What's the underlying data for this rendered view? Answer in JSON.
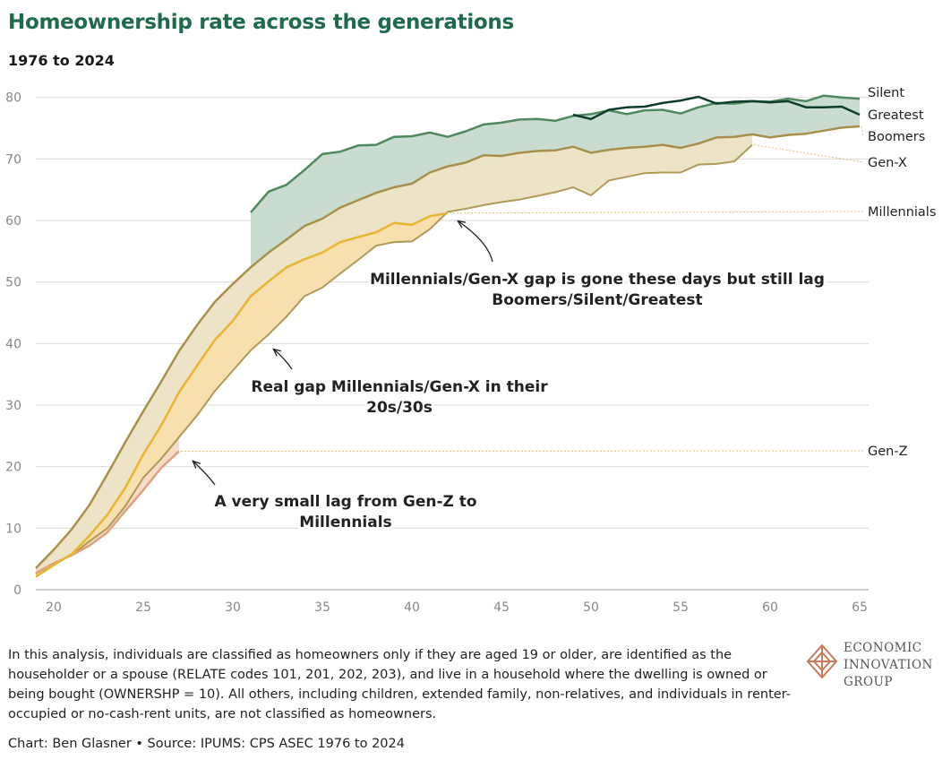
{
  "title": "Homeownership rate across the generations",
  "subtitle": "1976 to 2024",
  "footnote": "In this analysis, individuals are classified as homeowners only if they are aged 19 or older, are identified as the householder or a spouse (RELATE codes 101, 201, 202, 203), and live in a household where the dwelling is owned or being bought (OWNERSHP = 10). All others, including children, extended family, non-relatives, and individuals in renter-occupied or no-cash-rent units, are not classified as homeowners.",
  "credit": "Chart: Ben Glasner • Source: IPUMS: CPS ASEC 1976 to 2024",
  "logo": {
    "line1": "ECONOMIC",
    "line2": "INNOVATION",
    "line3": "GROUP"
  },
  "colors": {
    "silent": "#4e8a5e",
    "greatest": "#0f3d2c",
    "boomers": "#a8904a",
    "genx": "#a8904a",
    "millennials": "#e8b530",
    "genz": "#e0a27a",
    "fill_green": "#c9dccf",
    "fill_tan": "#ede3c6",
    "fill_yellow": "#f7dfae",
    "fill_peach": "#f6dcc8",
    "grid": "#d9d9d9",
    "axis_text": "#888888",
    "title": "#1e6b4a"
  },
  "chart_data": {
    "type": "line",
    "xlim": [
      19,
      65.5
    ],
    "ylim": [
      0,
      82
    ],
    "x_ticks": [
      20,
      25,
      30,
      35,
      40,
      45,
      50,
      55,
      60,
      65
    ],
    "y_ticks": [
      0,
      10,
      20,
      30,
      40,
      50,
      60,
      70,
      80
    ],
    "grid": true,
    "series": [
      {
        "name": "Silent",
        "x": [
          31,
          32,
          33,
          34,
          35,
          36,
          37,
          38,
          39,
          40,
          41,
          42,
          43,
          44,
          45,
          46,
          47,
          48,
          49,
          50,
          51,
          52,
          53,
          54,
          55,
          56,
          57,
          58,
          59,
          60,
          61,
          62,
          63,
          64,
          65
        ],
        "y": [
          61.3,
          64.7,
          65.8,
          68.2,
          70.8,
          71.2,
          72.2,
          72.3,
          73.6,
          73.7,
          74.3,
          73.6,
          74.5,
          75.6,
          75.9,
          76.4,
          76.5,
          76.2,
          77.0,
          77.3,
          77.9,
          77.3,
          77.9,
          78.0,
          77.4,
          78.4,
          79.1,
          79.0,
          79.4,
          79.3,
          79.8,
          79.4,
          80.3,
          80.0,
          79.8
        ]
      },
      {
        "name": "Greatest",
        "x": [
          49,
          50,
          51,
          52,
          53,
          54,
          55,
          56,
          57,
          58,
          59,
          60,
          61,
          62,
          63,
          64,
          65
        ],
        "y": [
          77.2,
          76.5,
          78.0,
          78.4,
          78.5,
          79.1,
          79.5,
          80.1,
          79.0,
          79.3,
          79.4,
          79.2,
          79.4,
          78.4,
          78.4,
          78.5,
          77.2
        ]
      },
      {
        "name": "Boomers",
        "x": [
          19,
          20,
          21,
          22,
          23,
          24,
          25,
          26,
          27,
          28,
          29,
          30,
          31,
          32,
          33,
          34,
          35,
          36,
          37,
          38,
          39,
          40,
          41,
          42,
          43,
          44,
          45,
          46,
          47,
          48,
          49,
          50,
          51,
          52,
          53,
          54,
          55,
          56,
          57,
          58,
          59,
          60,
          61,
          62,
          63,
          64,
          65
        ],
        "y": [
          3.5,
          6.5,
          9.8,
          13.8,
          18.8,
          24.0,
          29.0,
          33.8,
          38.8,
          43.0,
          46.8,
          49.7,
          52.4,
          54.8,
          56.9,
          59.1,
          60.3,
          62.1,
          63.3,
          64.5,
          65.4,
          66.0,
          67.8,
          68.8,
          69.4,
          70.6,
          70.5,
          71.0,
          71.3,
          71.4,
          72.0,
          71.0,
          71.5,
          71.8,
          72.0,
          72.3,
          71.8,
          72.5,
          73.5,
          73.6,
          74.0,
          73.5,
          73.9,
          74.1,
          74.6,
          75.1,
          75.3
        ]
      },
      {
        "name": "Gen-X",
        "x": [
          19,
          20,
          21,
          22,
          23,
          24,
          25,
          26,
          27,
          28,
          29,
          30,
          31,
          32,
          33,
          34,
          35,
          36,
          37,
          38,
          39,
          40,
          41,
          42,
          43,
          44,
          45,
          46,
          47,
          48,
          49,
          50,
          51,
          52,
          53,
          54,
          55,
          56,
          57,
          58,
          59
        ],
        "y": [
          2.6,
          4.3,
          5.6,
          7.9,
          10.0,
          13.6,
          18.2,
          21.3,
          24.8,
          28.3,
          32.3,
          35.6,
          38.9,
          41.5,
          44.4,
          47.7,
          49.1,
          51.4,
          53.6,
          55.9,
          56.5,
          56.6,
          58.6,
          61.4,
          61.9,
          62.5,
          63.0,
          63.4,
          64.0,
          64.6,
          65.4,
          64.1,
          66.5,
          67.1,
          67.7,
          67.8,
          67.8,
          69.1,
          69.2,
          69.6,
          72.3
        ]
      },
      {
        "name": "Millennials",
        "x": [
          19,
          20,
          21,
          22,
          23,
          24,
          25,
          26,
          27,
          28,
          29,
          30,
          31,
          32,
          33,
          34,
          35,
          36,
          37,
          38,
          39,
          40,
          41,
          42
        ],
        "y": [
          2.1,
          4.0,
          5.8,
          8.8,
          12.2,
          16.6,
          22.0,
          26.7,
          32.1,
          36.4,
          40.6,
          43.7,
          47.7,
          50.1,
          52.4,
          53.7,
          54.8,
          56.5,
          57.3,
          58.1,
          59.6,
          59.3,
          60.7,
          61.2
        ]
      },
      {
        "name": "Gen-Z",
        "x": [
          19,
          20,
          21,
          22,
          23,
          24,
          25,
          26,
          27
        ],
        "y": [
          2.7,
          4.3,
          5.6,
          7.2,
          9.3,
          12.8,
          16.2,
          19.8,
          22.5
        ]
      }
    ],
    "labels": [
      "Silent",
      "Greatest",
      "Boomers",
      "Gen-X",
      "Millennials",
      "Gen-Z"
    ],
    "annotations": [
      {
        "lines": [
          "Millennials/Gen-X gap is gone these days but still lag",
          "Boomers/Silent/Greatest"
        ]
      },
      {
        "lines": [
          "Real gap Millennials/Gen-X in their",
          "20s/30s"
        ]
      },
      {
        "lines": [
          "A very small lag from Gen-Z to",
          "Millennials"
        ]
      }
    ]
  }
}
